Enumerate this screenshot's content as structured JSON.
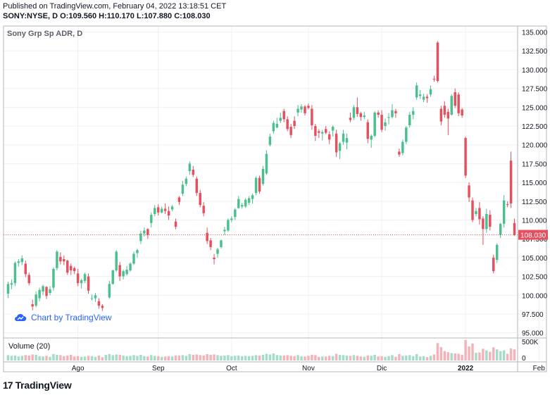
{
  "header": {
    "published": "Published on TradingView.com, February 04, 2022 13:18:51 CET",
    "symbol": "SONY:NYSE, D",
    "o_label": "O:",
    "o_value": "109.560",
    "h_label": "H:",
    "h_value": "110.170",
    "l_label": "L:",
    "l_value": "107.880",
    "c_label": "C:",
    "c_value": "108.030"
  },
  "watermark_label": "Chart by TradingView",
  "footer_brand": "TradingView",
  "colors": {
    "up": "#26a69a",
    "up_fill": "#4cbf8f",
    "down": "#e5505f",
    "last_price": "#e5505f",
    "grid": "#eef0f3",
    "axis_text": "#131722"
  },
  "chart_data": {
    "type": "candlestick",
    "title": "Sony Grp Sp ADR, D",
    "price_axis": {
      "ticks": [
        "135.000",
        "132.500",
        "130.000",
        "127.500",
        "125.000",
        "122.500",
        "120.000",
        "117.500",
        "115.000",
        "112.500",
        "110.000",
        "107.500",
        "105.000",
        "102.500",
        "100.000",
        "97.500",
        "95.000"
      ],
      "ylim": [
        94.5,
        135.8
      ]
    },
    "last_price": {
      "value": 108.03,
      "label": "108.030"
    },
    "x_labels": [
      {
        "label": "Ago",
        "index": 20
      },
      {
        "label": "Sep",
        "index": 43
      },
      {
        "label": "Oct",
        "index": 64
      },
      {
        "label": "Nov",
        "index": 86
      },
      {
        "label": "Dic",
        "index": 107
      },
      {
        "label": "2022",
        "index": 131
      },
      {
        "label": "Feb",
        "index": 152
      }
    ],
    "volume_panel": {
      "title": "Volume (20)",
      "ticks": [
        "500K",
        "0"
      ],
      "max": 650000
    },
    "candles": [
      {
        "o": 100.2,
        "h": 101.8,
        "l": 99.6,
        "c": 101.5,
        "v": 160000
      },
      {
        "o": 101.4,
        "h": 102.1,
        "l": 100.8,
        "c": 101.6,
        "v": 140000
      },
      {
        "o": 101.6,
        "h": 104.5,
        "l": 101.2,
        "c": 104.3,
        "v": 150000
      },
      {
        "o": 104.3,
        "h": 104.8,
        "l": 103.8,
        "c": 104.5,
        "v": 120000
      },
      {
        "o": 104.4,
        "h": 105.3,
        "l": 104.0,
        "c": 104.9,
        "v": 140000
      },
      {
        "o": 104.2,
        "h": 104.6,
        "l": 102.4,
        "c": 102.8,
        "v": 160000
      },
      {
        "o": 102.7,
        "h": 103.0,
        "l": 101.3,
        "c": 101.6,
        "v": 150000
      },
      {
        "o": 98.8,
        "h": 99.4,
        "l": 98.0,
        "c": 98.5,
        "v": 180000
      },
      {
        "o": 98.6,
        "h": 100.5,
        "l": 98.4,
        "c": 100.1,
        "v": 170000
      },
      {
        "o": 99.6,
        "h": 101.0,
        "l": 99.2,
        "c": 100.7,
        "v": 130000
      },
      {
        "o": 100.5,
        "h": 101.4,
        "l": 100.0,
        "c": 101.2,
        "v": 120000
      },
      {
        "o": 101.1,
        "h": 101.2,
        "l": 99.5,
        "c": 99.9,
        "v": 140000
      },
      {
        "o": 100.3,
        "h": 101.2,
        "l": 100.0,
        "c": 100.8,
        "v": 110000
      },
      {
        "o": 101.0,
        "h": 103.7,
        "l": 100.6,
        "c": 103.5,
        "v": 190000
      },
      {
        "o": 103.6,
        "h": 106.0,
        "l": 103.3,
        "c": 105.8,
        "v": 170000
      },
      {
        "o": 105.1,
        "h": 105.7,
        "l": 104.1,
        "c": 104.5,
        "v": 160000
      },
      {
        "o": 104.8,
        "h": 105.3,
        "l": 104.0,
        "c": 104.5,
        "v": 130000
      },
      {
        "o": 104.6,
        "h": 104.7,
        "l": 102.7,
        "c": 103.0,
        "v": 150000
      },
      {
        "o": 103.9,
        "h": 104.2,
        "l": 102.7,
        "c": 103.3,
        "v": 170000
      },
      {
        "o": 103.6,
        "h": 103.8,
        "l": 102.8,
        "c": 103.2,
        "v": 120000
      },
      {
        "o": 102.9,
        "h": 103.5,
        "l": 101.2,
        "c": 101.6,
        "v": 130000
      },
      {
        "o": 101.6,
        "h": 102.2,
        "l": 100.9,
        "c": 102.0,
        "v": 110000
      },
      {
        "o": 101.9,
        "h": 103.0,
        "l": 101.6,
        "c": 102.8,
        "v": 120000
      },
      {
        "o": 102.5,
        "h": 102.9,
        "l": 100.2,
        "c": 100.6,
        "v": 140000
      },
      {
        "o": 99.6,
        "h": 100.1,
        "l": 99.3,
        "c": 99.6,
        "v": 130000
      },
      {
        "o": 99.6,
        "h": 100.3,
        "l": 99.1,
        "c": 100.0,
        "v": 110000
      },
      {
        "o": 99.2,
        "h": 99.6,
        "l": 98.2,
        "c": 98.6,
        "v": 150000
      },
      {
        "o": 98.6,
        "h": 98.8,
        "l": 97.9,
        "c": 98.3,
        "v": 100000
      },
      {
        "o": 96.9,
        "h": 97.8,
        "l": 96.2,
        "c": 97.5,
        "v": 170000
      },
      {
        "o": 99.7,
        "h": 101.9,
        "l": 99.5,
        "c": 101.5,
        "v": 190000
      },
      {
        "o": 101.5,
        "h": 103.4,
        "l": 101.4,
        "c": 103.3,
        "v": 160000
      },
      {
        "o": 103.3,
        "h": 106.0,
        "l": 103.1,
        "c": 105.8,
        "v": 180000
      },
      {
        "o": 104.0,
        "h": 104.4,
        "l": 101.9,
        "c": 102.5,
        "v": 170000
      },
      {
        "o": 102.5,
        "h": 103.4,
        "l": 102.1,
        "c": 103.2,
        "v": 150000
      },
      {
        "o": 102.8,
        "h": 103.9,
        "l": 102.6,
        "c": 103.4,
        "v": 130000
      },
      {
        "o": 103.3,
        "h": 104.4,
        "l": 103.1,
        "c": 104.2,
        "v": 140000
      },
      {
        "o": 104.2,
        "h": 105.8,
        "l": 104.0,
        "c": 105.5,
        "v": 160000
      },
      {
        "o": 105.6,
        "h": 106.2,
        "l": 105.0,
        "c": 106.0,
        "v": 140000
      },
      {
        "o": 107.2,
        "h": 108.6,
        "l": 106.8,
        "c": 108.2,
        "v": 170000
      },
      {
        "o": 108.2,
        "h": 109.0,
        "l": 107.8,
        "c": 108.6,
        "v": 130000
      },
      {
        "o": 108.8,
        "h": 108.9,
        "l": 107.5,
        "c": 108.0,
        "v": 120000
      },
      {
        "o": 109.6,
        "h": 111.0,
        "l": 109.0,
        "c": 110.7,
        "v": 160000
      },
      {
        "o": 110.8,
        "h": 112.0,
        "l": 110.5,
        "c": 111.6,
        "v": 140000
      },
      {
        "o": 111.7,
        "h": 112.1,
        "l": 110.6,
        "c": 111.0,
        "v": 130000
      },
      {
        "o": 111.0,
        "h": 111.8,
        "l": 110.9,
        "c": 111.5,
        "v": 110000
      },
      {
        "o": 111.5,
        "h": 112.2,
        "l": 110.8,
        "c": 111.2,
        "v": 120000
      },
      {
        "o": 111.2,
        "h": 111.8,
        "l": 110.0,
        "c": 110.6,
        "v": 130000
      },
      {
        "o": 111.4,
        "h": 112.0,
        "l": 111.2,
        "c": 111.8,
        "v": 120000
      },
      {
        "o": 109.8,
        "h": 110.2,
        "l": 108.8,
        "c": 109.1,
        "v": 150000
      },
      {
        "o": 113.0,
        "h": 113.2,
        "l": 112.0,
        "c": 112.4,
        "v": 150000
      },
      {
        "o": 113.5,
        "h": 115.2,
        "l": 113.2,
        "c": 114.7,
        "v": 160000
      },
      {
        "o": 114.8,
        "h": 115.8,
        "l": 114.5,
        "c": 115.5,
        "v": 140000
      },
      {
        "o": 116.5,
        "h": 117.8,
        "l": 116.0,
        "c": 117.5,
        "v": 190000
      },
      {
        "o": 116.7,
        "h": 117.2,
        "l": 115.7,
        "c": 116.0,
        "v": 170000
      },
      {
        "o": 115.5,
        "h": 115.8,
        "l": 113.2,
        "c": 113.6,
        "v": 180000
      },
      {
        "o": 113.6,
        "h": 114.0,
        "l": 111.7,
        "c": 112.0,
        "v": 160000
      },
      {
        "o": 111.9,
        "h": 112.4,
        "l": 110.5,
        "c": 110.9,
        "v": 150000
      },
      {
        "o": 108.3,
        "h": 109.0,
        "l": 106.8,
        "c": 107.2,
        "v": 190000
      },
      {
        "o": 107.3,
        "h": 107.6,
        "l": 106.0,
        "c": 106.4,
        "v": 170000
      },
      {
        "o": 105.0,
        "h": 105.5,
        "l": 104.1,
        "c": 104.8,
        "v": 180000
      },
      {
        "o": 105.5,
        "h": 106.3,
        "l": 105.0,
        "c": 106.1,
        "v": 160000
      },
      {
        "o": 106.4,
        "h": 107.4,
        "l": 106.2,
        "c": 107.3,
        "v": 140000
      },
      {
        "o": 108.5,
        "h": 109.1,
        "l": 108.0,
        "c": 108.7,
        "v": 150000
      },
      {
        "o": 108.6,
        "h": 110.2,
        "l": 108.4,
        "c": 110.0,
        "v": 160000
      },
      {
        "o": 110.0,
        "h": 110.5,
        "l": 109.7,
        "c": 110.2,
        "v": 130000
      },
      {
        "o": 110.4,
        "h": 111.6,
        "l": 110.0,
        "c": 111.4,
        "v": 140000
      },
      {
        "o": 111.6,
        "h": 113.2,
        "l": 111.5,
        "c": 112.8,
        "v": 150000
      },
      {
        "o": 111.8,
        "h": 112.3,
        "l": 111.5,
        "c": 112.0,
        "v": 130000
      },
      {
        "o": 111.8,
        "h": 112.9,
        "l": 111.6,
        "c": 112.7,
        "v": 140000
      },
      {
        "o": 112.3,
        "h": 113.2,
        "l": 112.0,
        "c": 112.9,
        "v": 130000
      },
      {
        "o": 112.8,
        "h": 113.5,
        "l": 112.2,
        "c": 113.3,
        "v": 140000
      },
      {
        "o": 113.6,
        "h": 115.8,
        "l": 113.3,
        "c": 115.6,
        "v": 160000
      },
      {
        "o": 115.6,
        "h": 115.9,
        "l": 113.5,
        "c": 113.8,
        "v": 150000
      },
      {
        "o": 114.8,
        "h": 117.2,
        "l": 114.6,
        "c": 116.8,
        "v": 170000
      },
      {
        "o": 116.2,
        "h": 119.3,
        "l": 116.0,
        "c": 118.8,
        "v": 200000
      },
      {
        "o": 120.0,
        "h": 121.5,
        "l": 119.8,
        "c": 121.1,
        "v": 180000
      },
      {
        "o": 121.8,
        "h": 123.2,
        "l": 121.5,
        "c": 122.9,
        "v": 210000
      },
      {
        "o": 122.3,
        "h": 123.6,
        "l": 122.2,
        "c": 122.8,
        "v": 160000
      },
      {
        "o": 123.2,
        "h": 124.3,
        "l": 122.9,
        "c": 123.6,
        "v": 150000
      },
      {
        "o": 124.5,
        "h": 124.8,
        "l": 123.0,
        "c": 123.4,
        "v": 150000
      },
      {
        "o": 123.4,
        "h": 123.8,
        "l": 121.8,
        "c": 122.1,
        "v": 160000
      },
      {
        "o": 122.4,
        "h": 122.8,
        "l": 120.9,
        "c": 121.3,
        "v": 140000
      },
      {
        "o": 123.2,
        "h": 123.8,
        "l": 122.1,
        "c": 122.5,
        "v": 130000
      },
      {
        "o": 124.3,
        "h": 125.3,
        "l": 123.8,
        "c": 124.8,
        "v": 160000
      },
      {
        "o": 124.7,
        "h": 125.4,
        "l": 124.3,
        "c": 125.1,
        "v": 130000
      },
      {
        "o": 125.1,
        "h": 125.3,
        "l": 123.9,
        "c": 124.2,
        "v": 120000
      },
      {
        "o": 125.2,
        "h": 125.5,
        "l": 124.7,
        "c": 124.9,
        "v": 140000
      },
      {
        "o": 124.8,
        "h": 125.3,
        "l": 122.0,
        "c": 122.6,
        "v": 170000
      },
      {
        "o": 122.5,
        "h": 122.8,
        "l": 120.5,
        "c": 121.2,
        "v": 160000
      },
      {
        "o": 121.8,
        "h": 122.1,
        "l": 120.9,
        "c": 121.6,
        "v": 110000
      },
      {
        "o": 121.5,
        "h": 122.0,
        "l": 120.6,
        "c": 121.7,
        "v": 120000
      },
      {
        "o": 122.1,
        "h": 122.5,
        "l": 121.4,
        "c": 121.6,
        "v": 120000
      },
      {
        "o": 121.4,
        "h": 121.8,
        "l": 120.1,
        "c": 120.7,
        "v": 140000
      },
      {
        "o": 121.9,
        "h": 122.6,
        "l": 121.1,
        "c": 122.4,
        "v": 130000
      },
      {
        "o": 121.5,
        "h": 122.0,
        "l": 118.4,
        "c": 119.0,
        "v": 200000
      },
      {
        "o": 119.2,
        "h": 120.4,
        "l": 118.1,
        "c": 120.2,
        "v": 170000
      },
      {
        "o": 120.4,
        "h": 122.0,
        "l": 120.0,
        "c": 121.5,
        "v": 160000
      },
      {
        "o": 120.3,
        "h": 121.5,
        "l": 119.4,
        "c": 120.9,
        "v": 150000
      },
      {
        "o": 123.6,
        "h": 124.3,
        "l": 123.0,
        "c": 123.3,
        "v": 140000
      },
      {
        "o": 123.6,
        "h": 125.3,
        "l": 123.3,
        "c": 125.0,
        "v": 160000
      },
      {
        "o": 125.0,
        "h": 126.3,
        "l": 123.7,
        "c": 124.1,
        "v": 140000
      },
      {
        "o": 124.2,
        "h": 124.4,
        "l": 123.2,
        "c": 123.7,
        "v": 120000
      },
      {
        "o": 123.7,
        "h": 124.4,
        "l": 123.4,
        "c": 123.9,
        "v": 110000
      },
      {
        "o": 123.0,
        "h": 123.4,
        "l": 120.2,
        "c": 120.8,
        "v": 150000
      },
      {
        "o": 120.7,
        "h": 121.4,
        "l": 119.6,
        "c": 121.2,
        "v": 140000
      },
      {
        "o": 121.2,
        "h": 124.5,
        "l": 121.0,
        "c": 124.3,
        "v": 170000
      },
      {
        "o": 124.3,
        "h": 124.6,
        "l": 123.6,
        "c": 124.0,
        "v": 120000
      },
      {
        "o": 124.0,
        "h": 124.6,
        "l": 121.7,
        "c": 122.0,
        "v": 130000
      },
      {
        "o": 122.5,
        "h": 123.5,
        "l": 121.9,
        "c": 123.0,
        "v": 110000
      },
      {
        "o": 123.6,
        "h": 124.2,
        "l": 122.7,
        "c": 123.7,
        "v": 130000
      },
      {
        "o": 123.7,
        "h": 125.4,
        "l": 123.5,
        "c": 124.6,
        "v": 160000
      },
      {
        "o": 124.5,
        "h": 124.8,
        "l": 123.6,
        "c": 124.2,
        "v": 110000
      },
      {
        "o": 119.1,
        "h": 119.5,
        "l": 118.4,
        "c": 118.7,
        "v": 190000
      },
      {
        "o": 118.9,
        "h": 120.7,
        "l": 118.6,
        "c": 120.4,
        "v": 140000
      },
      {
        "o": 120.4,
        "h": 122.5,
        "l": 120.1,
        "c": 122.3,
        "v": 150000
      },
      {
        "o": 122.6,
        "h": 124.4,
        "l": 122.3,
        "c": 124.0,
        "v": 160000
      },
      {
        "o": 124.0,
        "h": 125.0,
        "l": 123.4,
        "c": 124.5,
        "v": 130000
      },
      {
        "o": 126.3,
        "h": 128.3,
        "l": 126.0,
        "c": 127.9,
        "v": 190000
      },
      {
        "o": 126.5,
        "h": 127.3,
        "l": 126.1,
        "c": 126.7,
        "v": 120000
      },
      {
        "o": 126.0,
        "h": 126.8,
        "l": 125.7,
        "c": 126.4,
        "v": 130000
      },
      {
        "o": 126.4,
        "h": 126.7,
        "l": 125.6,
        "c": 126.2,
        "v": 100000
      },
      {
        "o": 126.7,
        "h": 127.9,
        "l": 126.4,
        "c": 127.4,
        "v": 140000
      },
      {
        "o": 128.8,
        "h": 129.2,
        "l": 128.4,
        "c": 128.7,
        "v": 180000
      },
      {
        "o": 133.6,
        "h": 133.8,
        "l": 128.3,
        "c": 128.5,
        "v": 520000
      },
      {
        "o": 124.8,
        "h": 125.2,
        "l": 122.6,
        "c": 123.1,
        "v": 400000
      },
      {
        "o": 125.2,
        "h": 125.8,
        "l": 123.6,
        "c": 124.0,
        "v": 280000
      },
      {
        "o": 124.4,
        "h": 124.8,
        "l": 121.3,
        "c": 123.5,
        "v": 250000
      },
      {
        "o": 124.0,
        "h": 126.7,
        "l": 123.9,
        "c": 126.5,
        "v": 220000
      },
      {
        "o": 127.0,
        "h": 127.5,
        "l": 124.9,
        "c": 125.2,
        "v": 210000
      },
      {
        "o": 126.7,
        "h": 127.0,
        "l": 123.8,
        "c": 124.2,
        "v": 200000
      },
      {
        "o": 124.7,
        "h": 124.9,
        "l": 123.6,
        "c": 123.9,
        "v": 170000
      },
      {
        "o": 120.9,
        "h": 121.1,
        "l": 115.6,
        "c": 115.9,
        "v": 610000
      },
      {
        "o": 114.6,
        "h": 115.0,
        "l": 112.4,
        "c": 113.0,
        "v": 420000
      },
      {
        "o": 112.6,
        "h": 113.0,
        "l": 109.7,
        "c": 110.0,
        "v": 510000
      },
      {
        "o": 110.8,
        "h": 111.6,
        "l": 110.5,
        "c": 111.2,
        "v": 230000
      },
      {
        "o": 111.6,
        "h": 112.4,
        "l": 109.4,
        "c": 110.1,
        "v": 240000
      },
      {
        "o": 110.2,
        "h": 110.5,
        "l": 106.7,
        "c": 108.8,
        "v": 350000
      },
      {
        "o": 108.8,
        "h": 111.5,
        "l": 108.3,
        "c": 110.8,
        "v": 300000
      },
      {
        "o": 110.7,
        "h": 111.3,
        "l": 108.6,
        "c": 109.1,
        "v": 260000
      },
      {
        "o": 105.0,
        "h": 105.4,
        "l": 102.9,
        "c": 103.2,
        "v": 390000
      },
      {
        "o": 104.7,
        "h": 106.9,
        "l": 104.3,
        "c": 106.7,
        "v": 330000
      },
      {
        "o": 108.0,
        "h": 109.6,
        "l": 107.6,
        "c": 109.5,
        "v": 280000
      },
      {
        "o": 109.5,
        "h": 113.3,
        "l": 109.0,
        "c": 112.6,
        "v": 300000
      },
      {
        "o": 112.1,
        "h": 112.5,
        "l": 111.7,
        "c": 112.0,
        "v": 200000
      },
      {
        "o": 117.9,
        "h": 119.1,
        "l": 111.6,
        "c": 112.2,
        "v": 360000
      },
      {
        "o": 109.6,
        "h": 110.2,
        "l": 107.9,
        "c": 108.0,
        "v": 330000
      }
    ]
  }
}
